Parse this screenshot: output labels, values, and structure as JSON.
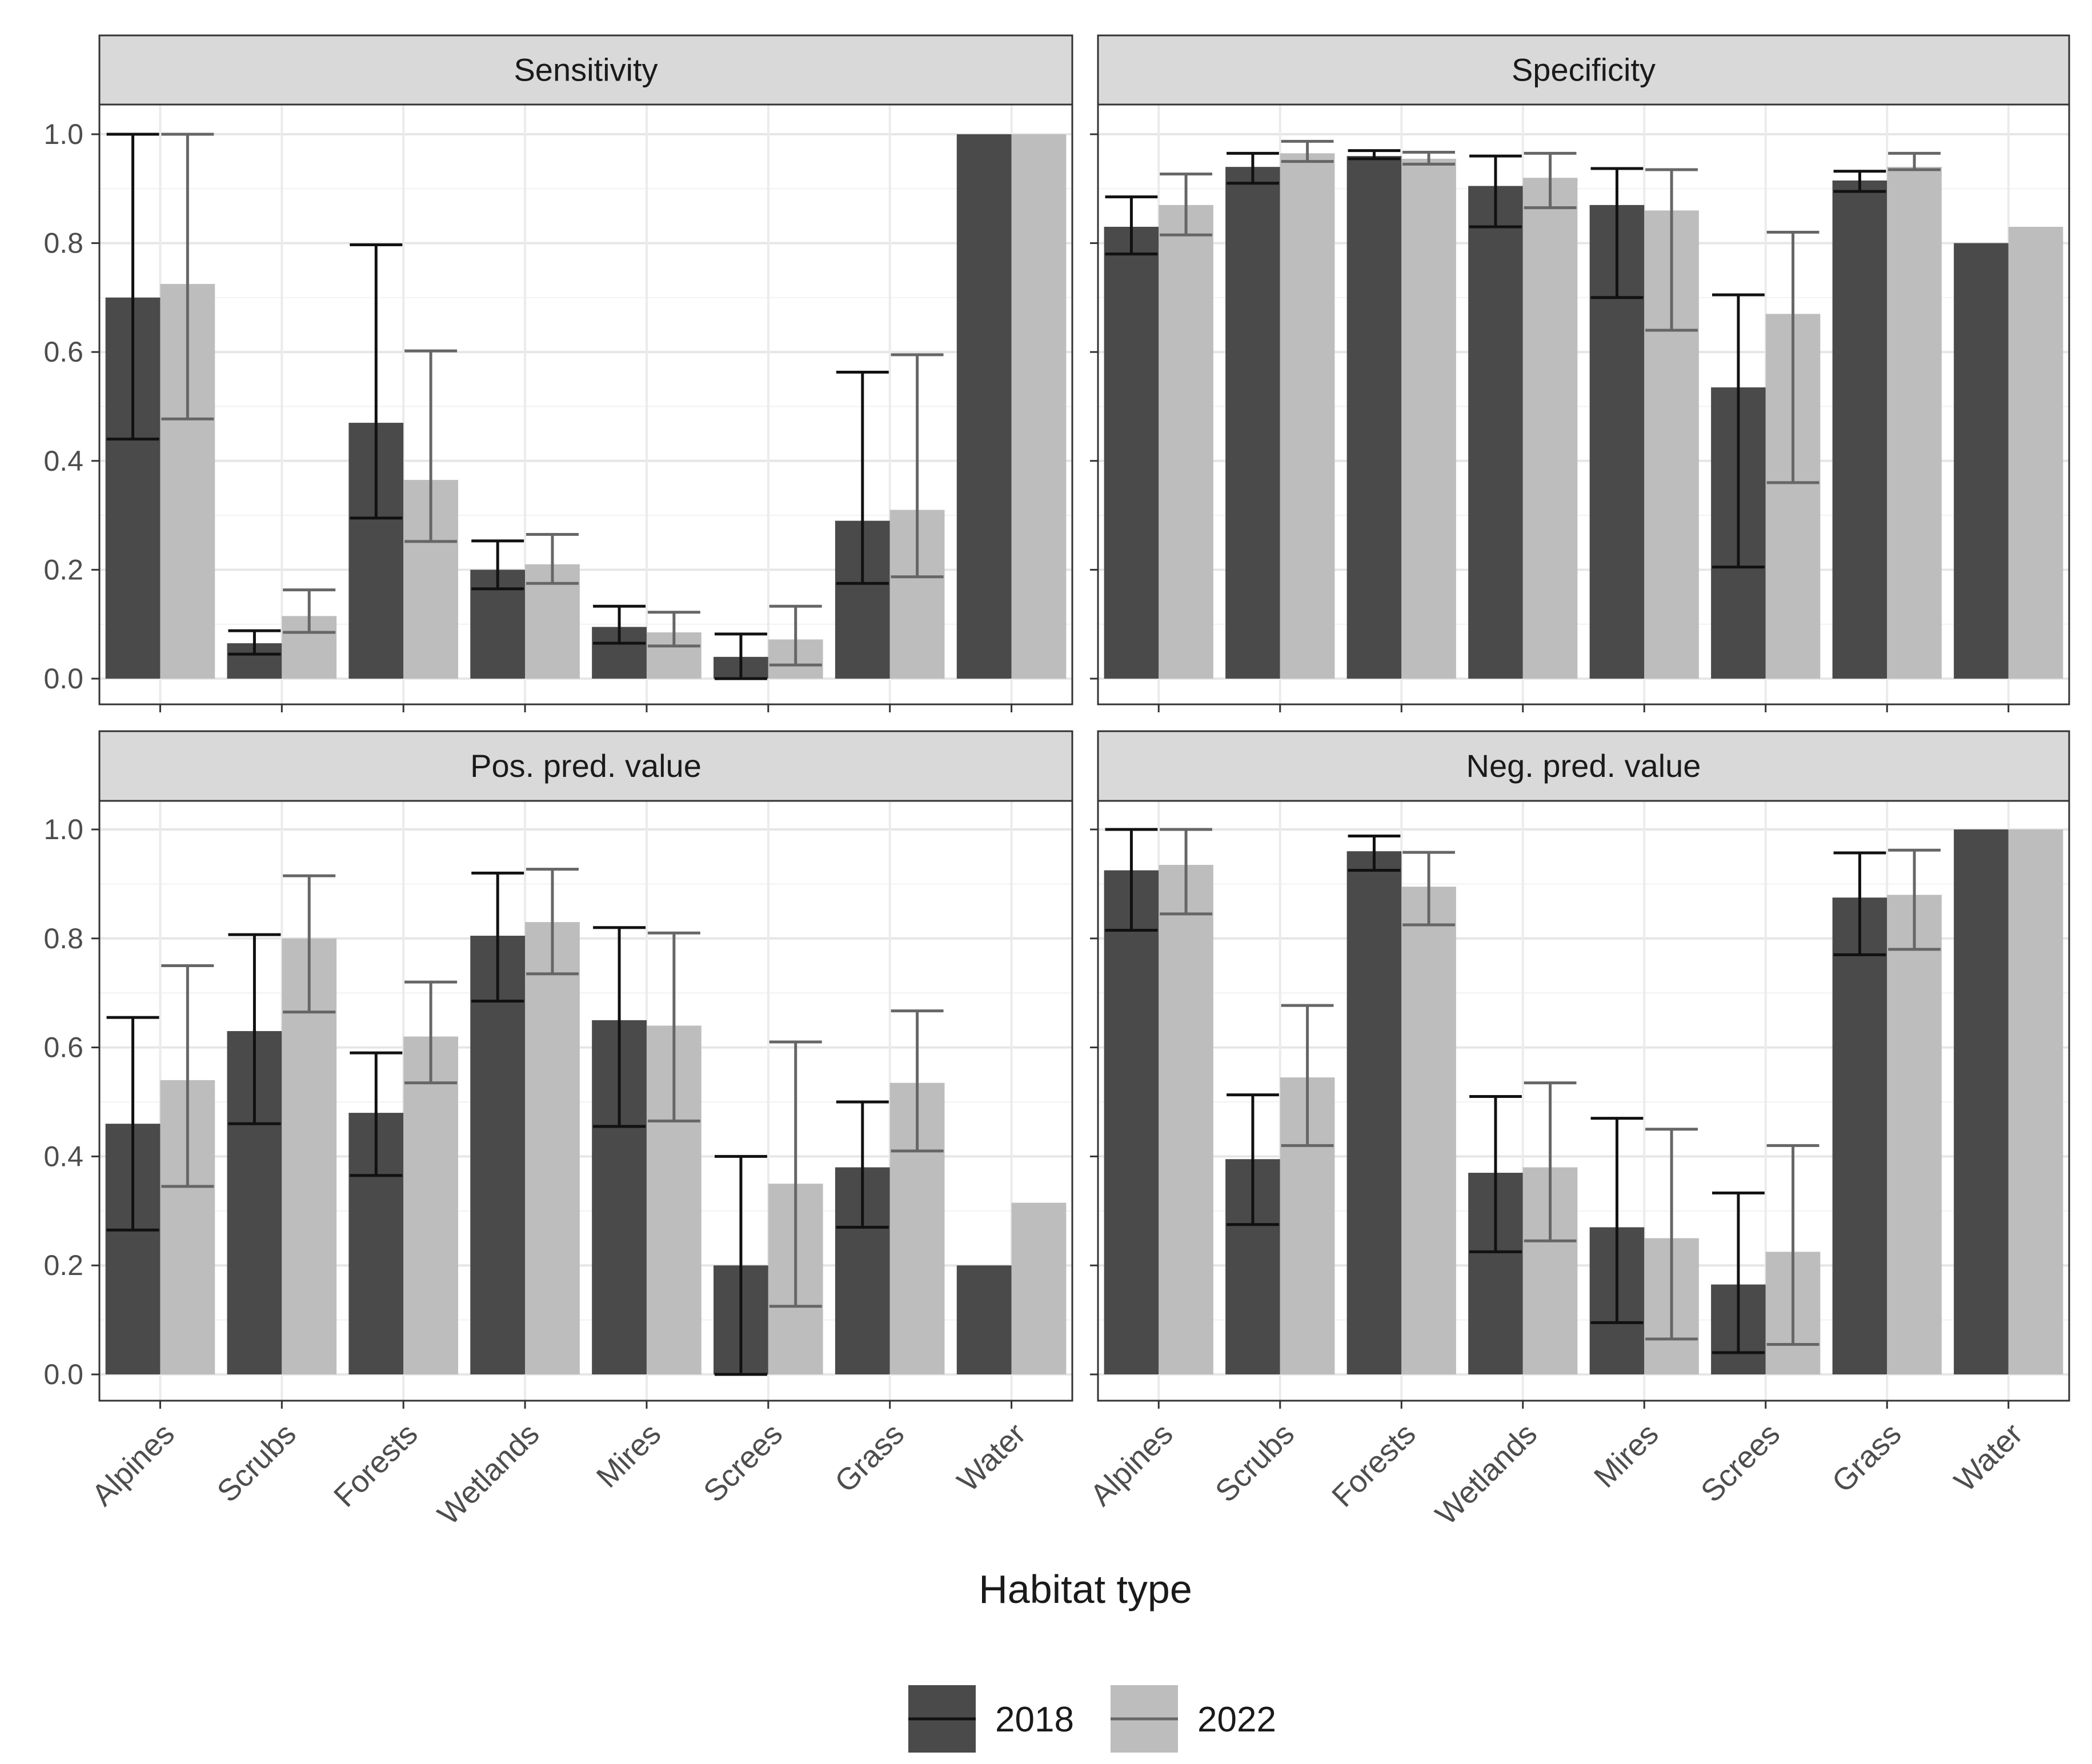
{
  "chart_data": {
    "type": "bar",
    "layout": "facet-2x2",
    "xlabel": "Habitat type",
    "ylabel": "",
    "ylim": [
      0,
      1
    ],
    "yticks": [
      "0.0",
      "0.2",
      "0.4",
      "0.6",
      "0.8",
      "1.0"
    ],
    "grid": true,
    "legend_position": "bottom",
    "categories": [
      "Alpines",
      "Scrubs",
      "Forests",
      "Wetlands",
      "Mires",
      "Screes",
      "Grass",
      "Water"
    ],
    "series_info": [
      {
        "name": "2018",
        "fill": "#4a4a4a",
        "errcolor": "#111111"
      },
      {
        "name": "2022",
        "fill": "#bdbdbd",
        "errcolor": "#666666"
      }
    ],
    "panels": [
      {
        "title": "Sensitivity",
        "series": [
          {
            "name": "2018",
            "values": [
              0.7,
              0.065,
              0.47,
              0.2,
              0.095,
              0.04,
              0.29,
              1.0
            ],
            "lower": [
              0.44,
              0.045,
              0.295,
              0.165,
              0.065,
              0.0,
              0.175,
              null
            ],
            "upper": [
              1.0,
              0.088,
              0.797,
              0.253,
              0.133,
              0.082,
              0.563,
              null
            ]
          },
          {
            "name": "2022",
            "values": [
              0.725,
              0.115,
              0.365,
              0.21,
              0.085,
              0.072,
              0.31,
              1.0
            ],
            "lower": [
              0.477,
              0.085,
              0.252,
              0.175,
              0.06,
              0.025,
              0.187,
              null
            ],
            "upper": [
              1.0,
              0.163,
              0.602,
              0.265,
              0.122,
              0.133,
              0.595,
              null
            ]
          }
        ]
      },
      {
        "title": "Specificity",
        "series": [
          {
            "name": "2018",
            "values": [
              0.83,
              0.94,
              0.96,
              0.905,
              0.87,
              0.535,
              0.915,
              0.8
            ],
            "lower": [
              0.78,
              0.91,
              0.955,
              0.83,
              0.7,
              0.205,
              0.895,
              null
            ],
            "upper": [
              0.885,
              0.965,
              0.97,
              0.96,
              0.937,
              0.705,
              0.932,
              null
            ]
          },
          {
            "name": "2022",
            "values": [
              0.87,
              0.965,
              0.955,
              0.92,
              0.86,
              0.67,
              0.94,
              0.83
            ],
            "lower": [
              0.815,
              0.95,
              0.945,
              0.865,
              0.64,
              0.36,
              0.935,
              null
            ],
            "upper": [
              0.927,
              0.987,
              0.967,
              0.965,
              0.935,
              0.82,
              0.965,
              null
            ]
          }
        ]
      },
      {
        "title": "Pos. pred. value",
        "series": [
          {
            "name": "2018",
            "values": [
              0.46,
              0.63,
              0.48,
              0.805,
              0.65,
              0.2,
              0.38,
              0.2
            ],
            "lower": [
              0.265,
              0.46,
              0.365,
              0.685,
              0.455,
              0.0,
              0.27,
              null
            ],
            "upper": [
              0.655,
              0.807,
              0.59,
              0.92,
              0.82,
              0.4,
              0.5,
              null
            ]
          },
          {
            "name": "2022",
            "values": [
              0.54,
              0.8,
              0.62,
              0.83,
              0.64,
              0.35,
              0.535,
              0.315
            ],
            "lower": [
              0.345,
              0.665,
              0.535,
              0.735,
              0.465,
              0.125,
              0.41,
              null
            ],
            "upper": [
              0.75,
              0.915,
              0.72,
              0.927,
              0.81,
              0.61,
              0.667,
              null
            ]
          }
        ]
      },
      {
        "title": "Neg. pred. value",
        "series": [
          {
            "name": "2018",
            "values": [
              0.925,
              0.395,
              0.96,
              0.37,
              0.27,
              0.165,
              0.875,
              1.0
            ],
            "lower": [
              0.815,
              0.275,
              0.925,
              0.225,
              0.095,
              0.04,
              0.77,
              null
            ],
            "upper": [
              1.0,
              0.513,
              0.988,
              0.51,
              0.47,
              0.333,
              0.957,
              null
            ]
          },
          {
            "name": "2022",
            "values": [
              0.935,
              0.545,
              0.895,
              0.38,
              0.25,
              0.225,
              0.88,
              1.0
            ],
            "lower": [
              0.845,
              0.42,
              0.825,
              0.245,
              0.065,
              0.055,
              0.78,
              null
            ],
            "upper": [
              1.0,
              0.677,
              0.958,
              0.535,
              0.45,
              0.42,
              0.962,
              null
            ]
          }
        ]
      }
    ]
  }
}
